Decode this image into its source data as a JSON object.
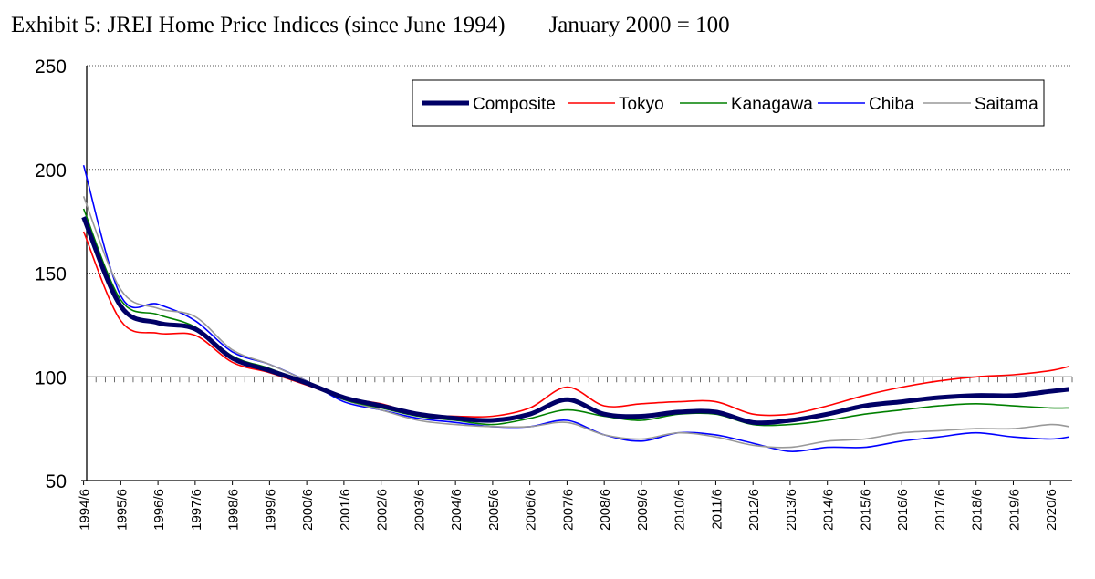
{
  "header": {
    "title": "Exhibit 5: JREI Home Price Indices (since June 1994)",
    "subtitle": "January 2000 = 100"
  },
  "chart_data": {
    "type": "line",
    "title": "Exhibit 5: JREI Home Price Indices (since June 1994)",
    "subtitle": "January 2000 = 100",
    "xlabel": "",
    "ylabel": "",
    "ylim": [
      50,
      250
    ],
    "yticks": [
      50,
      100,
      150,
      200,
      250
    ],
    "grid": "horizontal dotted at 150, 200, 250",
    "legend_position": "top-right",
    "reference_line": 100,
    "x_tick_labels": [
      "1994/6",
      "1995/6",
      "1996/6",
      "1997/6",
      "1998/6",
      "1999/6",
      "2000/6",
      "2001/6",
      "2002/6",
      "2003/6",
      "2004/6",
      "2005/6",
      "2006/6",
      "2007/6",
      "2008/6",
      "2009/6",
      "2010/6",
      "2011/6",
      "2012/6",
      "2013/6",
      "2014/6",
      "2015/6",
      "2016/6",
      "2017/6",
      "2018/6",
      "2019/6",
      "2020/6"
    ],
    "x": [
      "1994/6",
      "1995/6",
      "1996/6",
      "1997/6",
      "1998/6",
      "1999/6",
      "2000/6",
      "2001/6",
      "2002/6",
      "2003/6",
      "2004/6",
      "2005/6",
      "2006/6",
      "2007/6",
      "2008/6",
      "2009/6",
      "2010/6",
      "2011/6",
      "2012/6",
      "2013/6",
      "2014/6",
      "2015/6",
      "2016/6",
      "2017/6",
      "2018/6",
      "2019/6",
      "2020/6",
      "2020/12"
    ],
    "series": [
      {
        "name": "Composite",
        "color": "#000066",
        "width": 5,
        "values": [
          177,
          134,
          126,
          123,
          109,
          103,
          97,
          90,
          86,
          82,
          80,
          79,
          82,
          89,
          82,
          81,
          83,
          83,
          78,
          79,
          82,
          86,
          88,
          90,
          91,
          91,
          93,
          94
        ]
      },
      {
        "name": "Tokyo",
        "color": "#ff0000",
        "width": 1.6,
        "values": [
          170,
          127,
          121,
          120,
          107,
          102,
          96,
          90,
          87,
          82,
          81,
          81,
          85,
          95,
          86,
          87,
          88,
          88,
          82,
          82,
          86,
          91,
          95,
          98,
          100,
          101,
          103,
          105
        ]
      },
      {
        "name": "Kanagawa",
        "color": "#008000",
        "width": 1.6,
        "values": [
          181,
          137,
          130,
          124,
          110,
          104,
          97,
          89,
          85,
          81,
          79,
          77,
          80,
          84,
          81,
          79,
          82,
          82,
          77,
          77,
          79,
          82,
          84,
          86,
          87,
          86,
          85,
          85
        ]
      },
      {
        "name": "Chiba",
        "color": "#0000ff",
        "width": 1.6,
        "values": [
          202,
          139,
          135,
          127,
          112,
          106,
          98,
          88,
          84,
          80,
          78,
          76,
          76,
          79,
          72,
          69,
          73,
          72,
          68,
          64,
          66,
          66,
          69,
          71,
          73,
          71,
          70,
          71
        ]
      },
      {
        "name": "Saitama",
        "color": "#999999",
        "width": 1.6,
        "values": [
          187,
          142,
          133,
          129,
          113,
          106,
          98,
          89,
          84,
          79,
          77,
          76,
          76,
          78,
          72,
          70,
          73,
          71,
          67,
          66,
          69,
          70,
          73,
          74,
          75,
          75,
          77,
          76
        ]
      }
    ]
  }
}
